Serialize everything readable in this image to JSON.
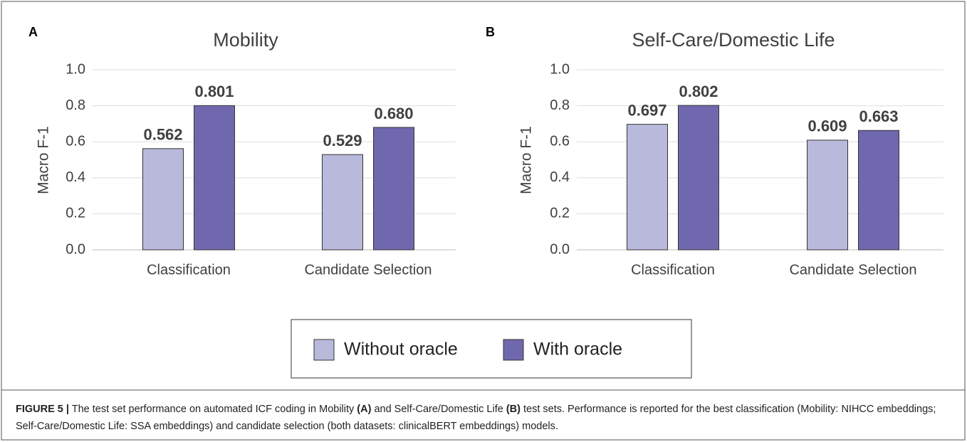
{
  "chart_data": [
    {
      "type": "bar",
      "panel_label": "A",
      "title": "Mobility",
      "y_label": "Macro F-1",
      "categories": [
        "Classification",
        "Candidate Selection"
      ],
      "series": [
        {
          "name": "Without oracle",
          "color": "#b9b9dc",
          "values": [
            0.562,
            0.529
          ],
          "value_labels": [
            "0.562",
            "0.529"
          ]
        },
        {
          "name": "With oracle",
          "color": "#7068ae",
          "values": [
            0.801,
            0.68
          ],
          "value_labels": [
            "0.801",
            "0.680"
          ]
        }
      ],
      "ylim": [
        0,
        1
      ],
      "yticks": [
        {
          "value": 0,
          "label": "0.0"
        },
        0.2,
        0.4,
        0.6,
        0.8,
        {
          "value": 1,
          "label": "1.0"
        }
      ],
      "grid": true
    },
    {
      "type": "bar",
      "panel_label": "B",
      "title": "Self-Care/Domestic Life",
      "y_label": "Macro F-1",
      "categories": [
        "Classification",
        "Candidate Selection"
      ],
      "series": [
        {
          "color": "#b9b9dc",
          "values": [
            0.697,
            0.609
          ],
          "value_labels": [
            "0.697",
            "0.609"
          ]
        },
        {
          "color": "#7068ae",
          "values": [
            0.802,
            0.663
          ],
          "value_labels": [
            "0.802",
            "0.663"
          ]
        }
      ],
      "ylim": [
        0,
        1
      ],
      "yticks": [
        {
          "value": 0,
          "label": "0.0"
        },
        0.2,
        0.4,
        0.6,
        0.8,
        {
          "value": 1,
          "label": "1.0"
        }
      ],
      "grid": true
    }
  ],
  "caption": [
    "FIGURE 5 |",
    " The test set performance on automated ICF coding in Mobility ",
    "(A)",
    " and Self-Care/Domestic Life ",
    "(B)",
    " test sets. Performance is reported for the best classification (Mobility: NIHCC embeddings; Self-Care/Domestic Life: SSA embeddings) and candidate selection (both datasets: clinicalBERT embeddings) models."
  ]
}
